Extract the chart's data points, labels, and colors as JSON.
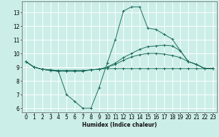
{
  "bg_color": "#cceee8",
  "grid_color": "#ffffff",
  "line_color": "#1a6b5a",
  "xlabel": "Humidex (Indice chaleur)",
  "xlim": [
    -0.5,
    23.5
  ],
  "ylim": [
    5.7,
    13.8
  ],
  "yticks": [
    6,
    7,
    8,
    9,
    10,
    11,
    12,
    13
  ],
  "xticks": [
    0,
    1,
    2,
    3,
    4,
    5,
    6,
    7,
    8,
    9,
    10,
    11,
    12,
    13,
    14,
    15,
    16,
    17,
    18,
    19,
    20,
    21,
    22,
    23
  ],
  "series": [
    {
      "x": [
        0,
        1,
        2,
        3,
        4,
        5,
        6,
        7,
        8,
        9,
        10,
        11,
        12,
        13,
        14,
        15,
        16,
        17,
        18,
        19,
        20,
        21,
        22,
        23
      ],
      "y": [
        9.4,
        9.0,
        8.85,
        8.75,
        8.7,
        7.0,
        6.5,
        6.0,
        6.0,
        7.5,
        9.3,
        11.0,
        13.1,
        13.4,
        13.4,
        11.85,
        11.75,
        11.4,
        11.05,
        10.2,
        9.4,
        9.2,
        8.9,
        8.9
      ]
    },
    {
      "x": [
        0,
        1,
        2,
        3,
        4,
        5,
        6,
        7,
        8,
        9,
        10,
        11,
        12,
        13,
        14,
        15,
        16,
        17,
        18,
        19,
        20,
        21,
        22,
        23
      ],
      "y": [
        9.4,
        9.0,
        8.85,
        8.75,
        8.7,
        8.7,
        8.7,
        8.7,
        8.8,
        8.85,
        9.0,
        9.3,
        9.7,
        10.0,
        10.3,
        10.5,
        10.55,
        10.6,
        10.55,
        10.2,
        9.4,
        9.2,
        8.9,
        8.9
      ]
    },
    {
      "x": [
        0,
        1,
        2,
        3,
        4,
        5,
        6,
        7,
        8,
        9,
        10,
        11,
        12,
        13,
        14,
        15,
        16,
        17,
        18,
        19,
        20,
        21,
        22,
        23
      ],
      "y": [
        9.4,
        9.0,
        8.85,
        8.8,
        8.75,
        8.75,
        8.75,
        8.75,
        8.8,
        8.85,
        8.9,
        8.9,
        8.9,
        8.9,
        8.9,
        8.9,
        8.9,
        8.9,
        8.9,
        8.9,
        8.9,
        8.9,
        8.9,
        8.9
      ]
    },
    {
      "x": [
        0,
        1,
        2,
        3,
        4,
        5,
        6,
        7,
        8,
        9,
        10,
        11,
        12,
        13,
        14,
        15,
        16,
        17,
        18,
        19,
        20,
        21,
        22,
        23
      ],
      "y": [
        9.4,
        9.0,
        8.85,
        8.8,
        8.75,
        8.75,
        8.75,
        8.75,
        8.8,
        8.85,
        9.0,
        9.2,
        9.5,
        9.75,
        9.9,
        10.0,
        10.0,
        9.95,
        9.85,
        9.7,
        9.4,
        9.2,
        8.9,
        8.9
      ]
    }
  ]
}
